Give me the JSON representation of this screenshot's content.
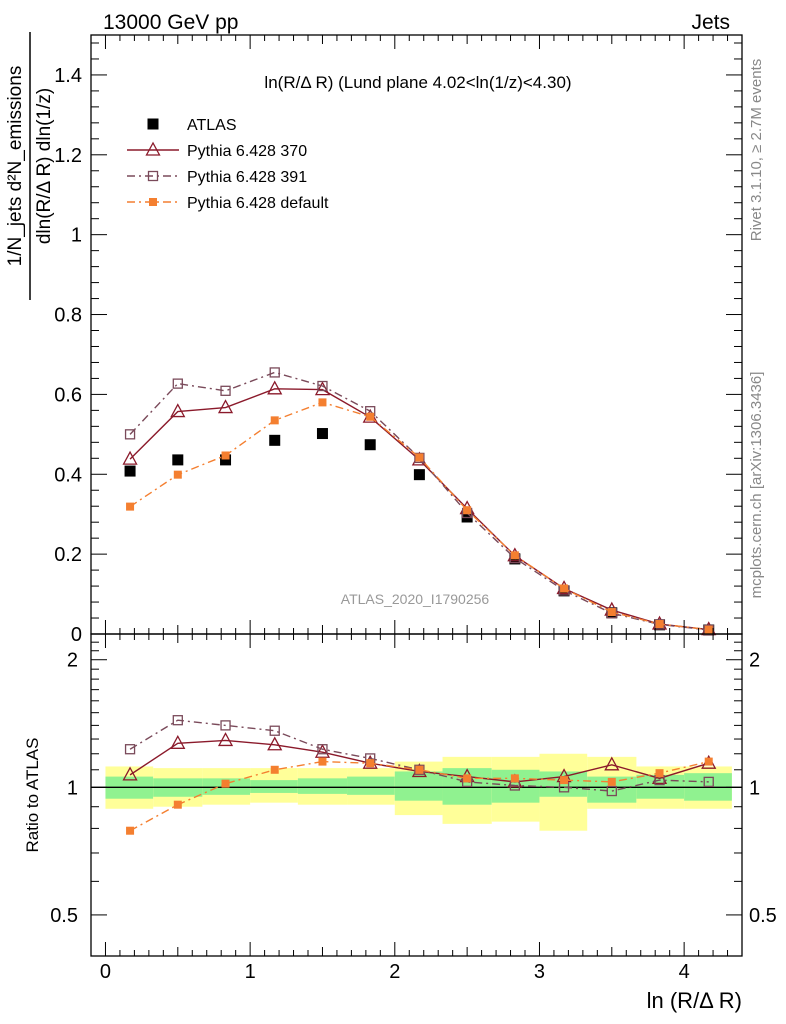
{
  "header": {
    "left": "13000 GeV pp",
    "right": "Jets"
  },
  "side_text": {
    "rivet": "Rivet 3.1.10, ≥ 2.7M events",
    "mcplots": "mcplots.cern.ch [arXiv:1306.3436]"
  },
  "colors": {
    "atlas": "#000000",
    "pythia370": "#8b1a2b",
    "pythia391": "#7a4a5a",
    "pythia_default": "#f47f30",
    "band_inner": "#90f290",
    "band_outer": "#ffff99"
  },
  "chart_data": [
    {
      "type": "line",
      "title": "ln(R/Δ R) (Lund plane 4.02<ln(1/z)<4.30)",
      "ylabel": "1/N_jets d²N_emissions / dln(R/Δ R) dln(1/z)",
      "xlabel": "",
      "xlim": [
        -0.1,
        4.4
      ],
      "ylim": [
        0,
        1.5
      ],
      "yticks": [
        0,
        0.2,
        0.4,
        0.6,
        0.8,
        1,
        1.2,
        1.4
      ],
      "ytick_labels": [
        "0",
        "0.2",
        "0.4",
        "0.6",
        "0.8",
        "1",
        "1.2",
        "1.4"
      ],
      "watermark": "ATLAS_2020_I1790256",
      "legend_position": "top-left",
      "x": [
        0.17,
        0.5,
        0.83,
        1.17,
        1.5,
        1.83,
        2.17,
        2.5,
        2.83,
        3.17,
        3.5,
        3.83,
        4.17
      ],
      "series": [
        {
          "name": "ATLAS",
          "marker": "filled-square",
          "line": "none",
          "values": [
            0.408,
            0.436,
            0.436,
            0.485,
            0.502,
            0.474,
            0.399,
            0.293,
            0.188,
            0.108,
            0.053,
            0.023,
            0.01
          ]
        },
        {
          "name": "Pythia 6.428 370",
          "marker": "open-triangle",
          "line": "solid",
          "values": [
            0.438,
            0.557,
            0.567,
            0.614,
            0.612,
            0.543,
            0.436,
            0.314,
            0.196,
            0.114,
            0.06,
            0.025,
            0.011
          ]
        },
        {
          "name": "Pythia 6.428 391",
          "marker": "open-square",
          "line": "dashdot",
          "values": [
            0.5,
            0.627,
            0.609,
            0.655,
            0.621,
            0.558,
            0.441,
            0.303,
            0.19,
            0.109,
            0.052,
            0.024,
            0.01
          ]
        },
        {
          "name": "Pythia 6.428 default",
          "marker": "small-filled-square",
          "line": "dashdot",
          "values": [
            0.319,
            0.399,
            0.447,
            0.535,
            0.58,
            0.544,
            0.442,
            0.31,
            0.197,
            0.114,
            0.055,
            0.025,
            0.011
          ]
        }
      ]
    },
    {
      "type": "line",
      "title": "",
      "ylabel": "Ratio to ATLAS",
      "xlabel": "ln (R/Δ R)",
      "xlim": [
        -0.1,
        4.4
      ],
      "ylim": [
        0.4,
        2.3
      ],
      "ylog": true,
      "yticks": [
        0.5,
        1,
        2
      ],
      "ytick_labels": [
        "0.5",
        "1",
        "2"
      ],
      "xticks": [
        0,
        1,
        2,
        3,
        4
      ],
      "xtick_labels": [
        "0",
        "1",
        "2",
        "3",
        "4"
      ],
      "x_edges": [
        0,
        0.33,
        0.67,
        1.0,
        1.33,
        1.67,
        2.0,
        2.33,
        2.67,
        3.0,
        3.33,
        3.67,
        4.0,
        4.33
      ],
      "band_inner": {
        "lo": [
          0.94,
          0.95,
          0.96,
          0.97,
          0.965,
          0.96,
          0.93,
          0.91,
          0.92,
          0.95,
          0.92,
          0.94,
          0.93
        ],
        "hi": [
          1.06,
          1.05,
          1.05,
          1.04,
          1.05,
          1.06,
          1.09,
          1.11,
          1.1,
          1.09,
          1.06,
          1.07,
          1.08
        ]
      },
      "band_outer": {
        "lo": [
          0.89,
          0.9,
          0.91,
          0.92,
          0.91,
          0.91,
          0.86,
          0.82,
          0.83,
          0.79,
          0.89,
          0.89,
          0.89
        ],
        "hi": [
          1.12,
          1.11,
          1.11,
          1.11,
          1.11,
          1.11,
          1.15,
          1.18,
          1.18,
          1.2,
          1.18,
          1.12,
          1.12
        ]
      },
      "series": [
        {
          "name": "Pythia 6.428 370",
          "values": [
            1.07,
            1.27,
            1.29,
            1.26,
            1.21,
            1.14,
            1.09,
            1.06,
            1.03,
            1.06,
            1.13,
            1.05,
            1.14
          ]
        },
        {
          "name": "Pythia 6.428 391",
          "values": [
            1.23,
            1.44,
            1.4,
            1.36,
            1.23,
            1.17,
            1.1,
            1.03,
            1.01,
            1.0,
            0.98,
            1.04,
            1.03
          ]
        },
        {
          "name": "Pythia 6.428 default",
          "values": [
            0.79,
            0.91,
            1.02,
            1.1,
            1.15,
            1.14,
            1.1,
            1.05,
            1.05,
            1.04,
            1.03,
            1.08,
            1.15
          ]
        }
      ]
    }
  ]
}
